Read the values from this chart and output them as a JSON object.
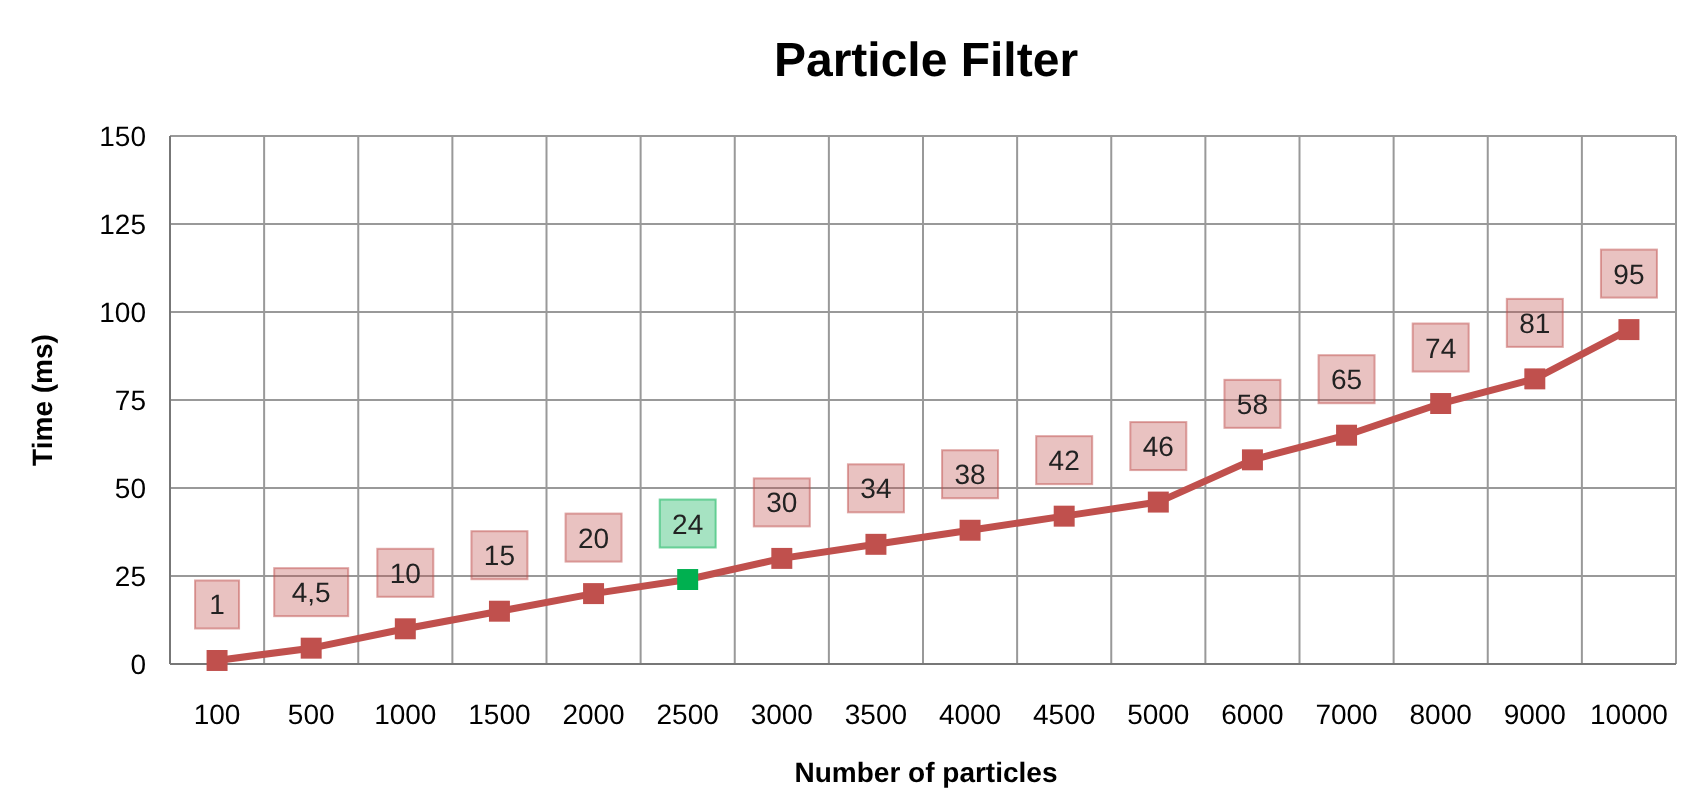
{
  "chart_data": {
    "type": "line",
    "title": "Particle Filter",
    "xlabel": "Number of particles",
    "ylabel": "Time (ms)",
    "categories": [
      "100",
      "500",
      "1000",
      "1500",
      "2000",
      "2500",
      "3000",
      "3500",
      "4000",
      "4500",
      "5000",
      "6000",
      "7000",
      "8000",
      "9000",
      "10000"
    ],
    "series": [
      {
        "color": "#c0504d",
        "values": [
          1,
          4.5,
          10,
          15,
          20,
          24,
          30,
          34,
          38,
          42,
          46,
          58,
          65,
          74,
          81,
          95
        ],
        "colors": [
          "#c0504d",
          "#c0504d",
          "#c0504d",
          "#c0504d",
          "#c0504d",
          "#00b050",
          "#c0504d",
          "#c0504d",
          "#c0504d",
          "#c0504d",
          "#c0504d",
          "#c0504d",
          "#c0504d",
          "#c0504d",
          "#c0504d",
          "#c0504d"
        ],
        "value_labels": [
          "1",
          "4,5",
          "10",
          "15",
          "20",
          "24",
          "30",
          "34",
          "38",
          "42",
          "46",
          "58",
          "65",
          "74",
          "81",
          "95"
        ]
      }
    ],
    "ylim": [
      0,
      150
    ],
    "yticks": [
      0,
      25,
      50,
      75,
      100,
      125,
      150
    ],
    "grid": true,
    "marker": "square",
    "line_style": "solid"
  }
}
